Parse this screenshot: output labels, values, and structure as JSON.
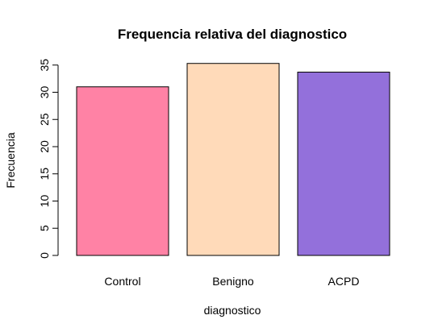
{
  "chart_data": {
    "type": "bar",
    "title": "Frequencia relativa del diagnostico",
    "xlabel": "diagnostico",
    "ylabel": "Frecuencia",
    "categories": [
      "Control",
      "Benigno",
      "ACPD"
    ],
    "values": [
      31.0,
      35.3,
      33.7
    ],
    "colors": [
      "#ff82a5",
      "#ffdab9",
      "#9370db"
    ],
    "ylim": [
      0,
      35
    ],
    "yticks": [
      "0",
      "5",
      "10",
      "15",
      "20",
      "25",
      "30",
      "35"
    ],
    "grid": false,
    "legend": "none"
  }
}
